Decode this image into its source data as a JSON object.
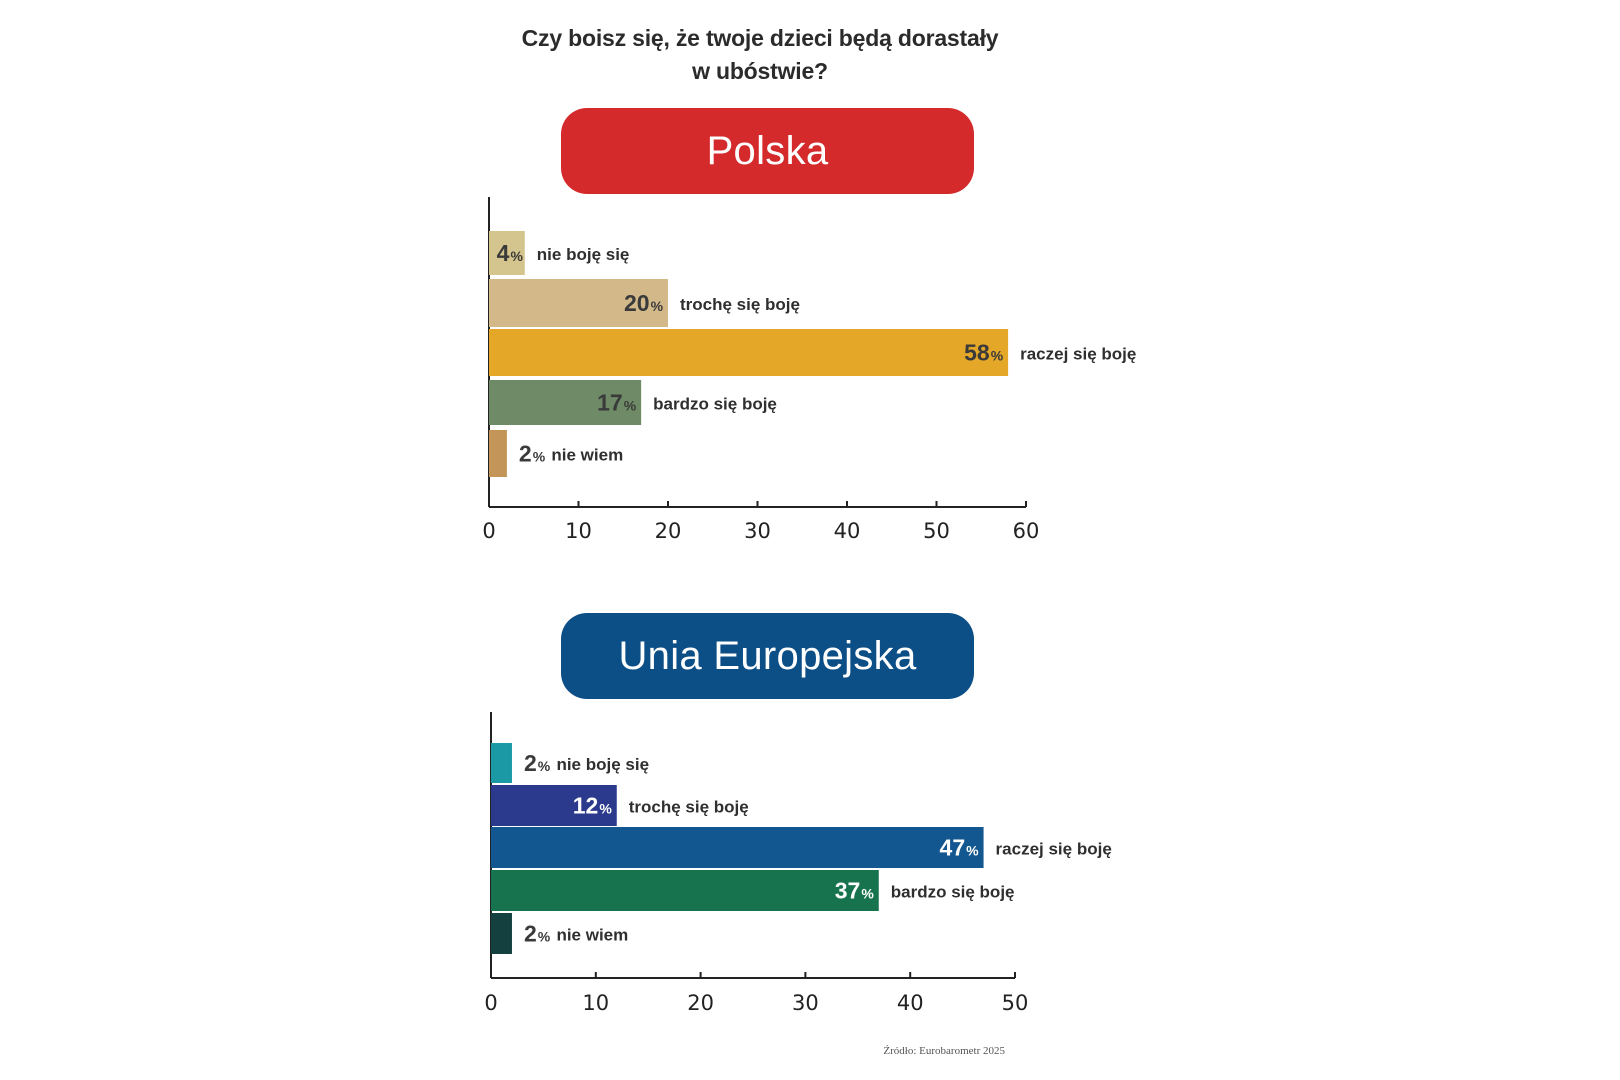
{
  "title_line1": "Czy boisz się, że twoje dzieci będą dorastały",
  "title_line2": "w ubóstwie?",
  "source": "Źródło: Eurobarometr 2025",
  "chart_data": [
    {
      "type": "bar",
      "orientation": "horizontal",
      "header": "Polska",
      "header_color": "#d42a2b",
      "categories": [
        "nie boję się",
        "trochę się boję",
        "raczej się boję",
        "bardzo się boję",
        "nie wiem"
      ],
      "values": [
        4,
        20,
        58,
        17,
        2
      ],
      "value_labels": [
        "4",
        "20",
        "58",
        "17",
        "2"
      ],
      "unit": "%",
      "colors": [
        "#d4c48e",
        "#d3b98a",
        "#e4a728",
        "#6e8a66",
        "#c39558"
      ],
      "label_colors": [
        "#3a3a3a",
        "#3a3a3a",
        "#3a3a3a",
        "#3a3a3a",
        "#3a3a3a"
      ],
      "xlim": [
        0,
        60
      ],
      "xticks": [
        0,
        10,
        20,
        30,
        40,
        50,
        60
      ],
      "grid": false
    },
    {
      "type": "bar",
      "orientation": "horizontal",
      "header": "Unia Europejska",
      "header_color": "#0c4e86",
      "categories": [
        "nie boję się",
        "trochę się boję",
        "raczej się boję",
        "bardzo się boję",
        "nie wiem"
      ],
      "values": [
        2,
        12,
        47,
        37,
        2
      ],
      "value_labels": [
        "2",
        "12",
        "47",
        "37",
        "2"
      ],
      "unit": "%",
      "colors": [
        "#1b9aa6",
        "#2b3a8c",
        "#12578f",
        "#16734e",
        "#14403f"
      ],
      "label_colors": [
        "#3a3a3a",
        "#ffffff",
        "#ffffff",
        "#ffffff",
        "#3a3a3a"
      ],
      "xlim": [
        0,
        50
      ],
      "xticks": [
        0,
        10,
        20,
        30,
        40,
        50
      ],
      "grid": false
    }
  ]
}
